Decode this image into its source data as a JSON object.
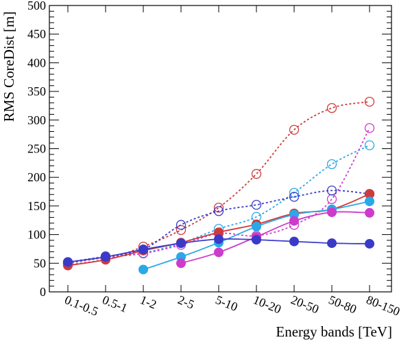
{
  "chart_data": {
    "type": "line",
    "xlabel": "Energy bands [TeV]",
    "ylabel": "RMS CoreDist [m]",
    "ylim": [
      0,
      500
    ],
    "yticks": [
      0,
      50,
      100,
      150,
      200,
      250,
      300,
      350,
      400,
      450,
      500
    ],
    "categories": [
      "0.1-0.5",
      "0.5-1",
      "1-2",
      "2-5",
      "5-10",
      "10-20",
      "20-50",
      "50-80",
      "80-150"
    ],
    "grid": false,
    "series": [
      {
        "style": "dashed",
        "marker": "open-circle",
        "color": "#d03a3a",
        "values": [
          47,
          57,
          79,
          108,
          147,
          206,
          283,
          321,
          332
        ]
      },
      {
        "style": "dashed",
        "marker": "open-circle",
        "color": "#2aa8e8",
        "values": [
          50,
          60,
          68,
          85,
          110,
          131,
          173,
          223,
          256
        ]
      },
      {
        "style": "dashed",
        "marker": "open-circle",
        "color": "#cc3ccc",
        "values": [
          50,
          60,
          67,
          82,
          102,
          98,
          117,
          162,
          286
        ]
      },
      {
        "style": "dashed",
        "marker": "open-circle",
        "color": "#3a3ac8",
        "values": [
          52,
          62,
          74,
          117,
          141,
          152,
          166,
          177,
          171
        ]
      },
      {
        "style": "solid",
        "marker": "filled-circle",
        "color": "#d03a3a",
        "values": [
          46,
          56,
          72,
          86,
          104,
          118,
          137,
          144,
          171
        ]
      },
      {
        "style": "solid",
        "marker": "filled-circle",
        "color": "#2aa8e8",
        "values": [
          null,
          null,
          39,
          61,
          86,
          114,
          135,
          144,
          158
        ]
      },
      {
        "style": "solid",
        "marker": "filled-circle",
        "color": "#cc3ccc",
        "values": [
          null,
          null,
          null,
          50,
          69,
          96,
          124,
          139,
          138
        ]
      },
      {
        "style": "solid",
        "marker": "filled-circle",
        "color": "#3a3ac8",
        "values": [
          52,
          61,
          74,
          85,
          92,
          91,
          88,
          85,
          84
        ]
      }
    ]
  }
}
